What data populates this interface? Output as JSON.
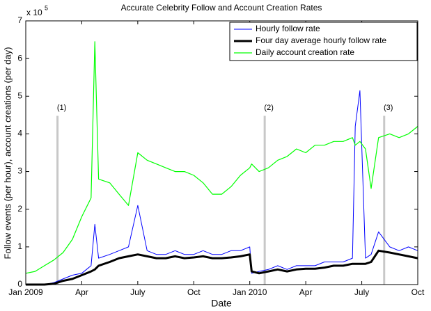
{
  "chart_data": {
    "type": "line",
    "title": "Accurate Celebrity Follow and Account Creation Rates",
    "x_label": "Date",
    "y_label": "Follow events (per hour), account creations (per day)",
    "y_multiplier_base": "x 10",
    "y_multiplier_exponent": "5",
    "x": [
      0,
      0.5,
      1,
      1.5,
      2,
      2.5,
      3,
      3.5,
      3.7,
      3.9,
      4.5,
      5,
      5.5,
      6,
      6.5,
      7,
      7.5,
      8,
      8.5,
      9,
      9.5,
      10,
      10.5,
      11,
      11.5,
      12,
      12.1,
      12.5,
      13,
      13.5,
      14,
      14.5,
      15,
      15.5,
      16,
      16.5,
      17,
      17.5,
      17.65,
      17.9,
      18.2,
      18.5,
      18.9,
      19.5,
      20,
      20.5,
      21
    ],
    "series": [
      {
        "name": "Hourly follow rate",
        "color": "#0000ff",
        "width": 1,
        "values": [
          0,
          0,
          0,
          0.05,
          0.15,
          0.25,
          0.3,
          0.5,
          1.6,
          0.7,
          0.8,
          0.9,
          1.0,
          2.1,
          0.9,
          0.8,
          0.8,
          0.9,
          0.8,
          0.8,
          0.9,
          0.8,
          0.8,
          0.9,
          0.9,
          1.0,
          0.3,
          0.35,
          0.4,
          0.5,
          0.4,
          0.5,
          0.5,
          0.5,
          0.6,
          0.6,
          0.6,
          0.7,
          4.2,
          5.15,
          0.7,
          0.8,
          1.4,
          1.0,
          0.9,
          1.0,
          0.9
        ]
      },
      {
        "name": "Four day average hourly follow rate",
        "color": "#000000",
        "width": 3,
        "values": [
          0,
          0,
          0,
          0.02,
          0.1,
          0.15,
          0.25,
          0.35,
          0.4,
          0.5,
          0.6,
          0.7,
          0.75,
          0.8,
          0.75,
          0.7,
          0.7,
          0.75,
          0.7,
          0.72,
          0.75,
          0.7,
          0.7,
          0.72,
          0.75,
          0.8,
          0.35,
          0.3,
          0.35,
          0.4,
          0.35,
          0.4,
          0.42,
          0.42,
          0.45,
          0.5,
          0.5,
          0.55,
          0.55,
          0.55,
          0.55,
          0.6,
          0.9,
          0.85,
          0.8,
          0.75,
          0.7
        ]
      },
      {
        "name": "Daily account creation rate",
        "color": "#00ff00",
        "width": 1.2,
        "values": [
          0.3,
          0.35,
          0.5,
          0.65,
          0.85,
          1.2,
          1.8,
          2.3,
          6.45,
          2.8,
          2.7,
          2.4,
          2.1,
          3.5,
          3.3,
          3.2,
          3.1,
          3.0,
          3.0,
          2.9,
          2.7,
          2.4,
          2.4,
          2.6,
          2.9,
          3.1,
          3.2,
          3.0,
          3.1,
          3.3,
          3.4,
          3.6,
          3.5,
          3.7,
          3.7,
          3.8,
          3.8,
          3.9,
          3.7,
          3.8,
          3.6,
          2.55,
          3.9,
          4.0,
          3.9,
          4.0,
          4.2
        ]
      }
    ],
    "annotations": [
      {
        "x": 1.7,
        "label": "(1)"
      },
      {
        "x": 12.8,
        "label": "(2)"
      },
      {
        "x": 19.2,
        "label": "(3)"
      }
    ],
    "annotation_color": "#c8c8c8",
    "xlim": [
      0,
      21
    ],
    "xticks": [
      {
        "value": 0,
        "label": "Jan 2009"
      },
      {
        "value": 3,
        "label": "Apr"
      },
      {
        "value": 6,
        "label": "July"
      },
      {
        "value": 9,
        "label": "Oct"
      },
      {
        "value": 12,
        "label": "Jan 2010"
      },
      {
        "value": 15,
        "label": "Apr"
      },
      {
        "value": 18,
        "label": "July"
      },
      {
        "value": 21,
        "label": "Oct"
      }
    ],
    "ylim": [
      0,
      7
    ],
    "yticks": [
      0,
      1,
      2,
      3,
      4,
      5,
      6,
      7
    ],
    "grid": false,
    "legend": "upper right"
  }
}
